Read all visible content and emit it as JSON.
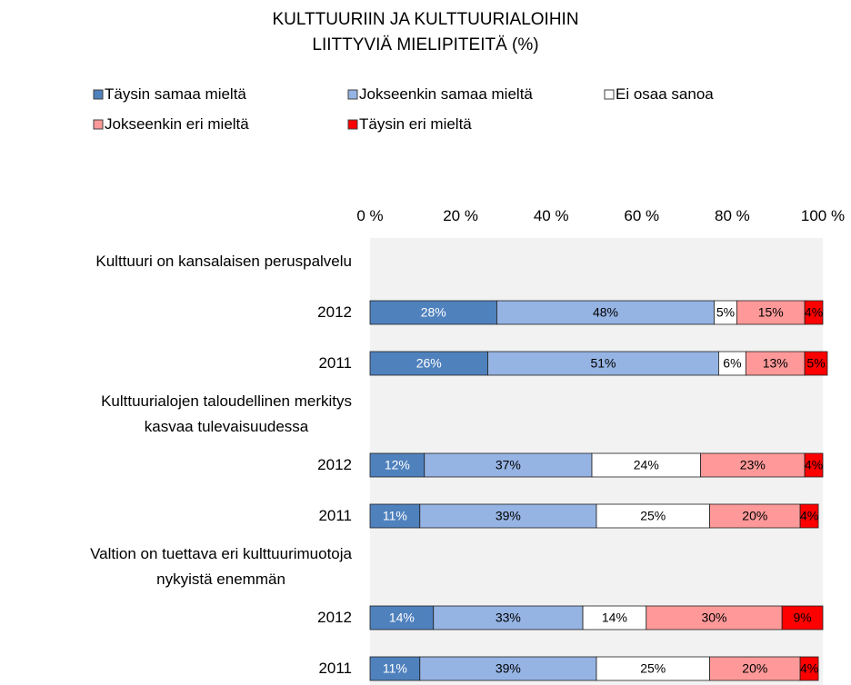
{
  "chart_data": {
    "type": "stacked-barh",
    "title": "KULTTUURIIN JA KULTTUURIALOIHIN\nLIITTYVIÄ MIELIPITEITÄ (%)",
    "categories": [
      "Kulttuuri on kansalaisen peruspalvelu",
      "2012",
      "2011",
      "Kulttuurialojen taloudellinen merkitys\nkasvaa tulevaisuudessa",
      "2012",
      "2011",
      "Valtion on tuettava eri kulttuurimuotoja\nnykyistä enemmän",
      "2012",
      "2011"
    ],
    "series": [
      {
        "name": "Täysin samaa mieltä",
        "color": "#4f81bd",
        "values": [
          null,
          28,
          26,
          null,
          12,
          11,
          null,
          14,
          11
        ],
        "value_labels": [
          null,
          "28%",
          "26%",
          null,
          "12%",
          "11%",
          null,
          "14%",
          "11%"
        ]
      },
      {
        "name": "Jokseenkin samaa mieltä",
        "color": "#95b3e3",
        "values": [
          null,
          48,
          51,
          null,
          37,
          39,
          null,
          33,
          39
        ],
        "value_labels": [
          null,
          "48%",
          "51%",
          null,
          "37%",
          "39%",
          null,
          "33%",
          "39%"
        ]
      },
      {
        "name": "Ei osaa sanoa",
        "color": "#ffffff",
        "values": [
          null,
          5,
          6,
          null,
          24,
          25,
          null,
          14,
          25
        ],
        "value_labels": [
          null,
          "5%",
          "6%",
          null,
          "24%",
          "25%",
          null,
          "14%",
          "25%"
        ]
      },
      {
        "name": "Jokseenkin eri mieltä",
        "color": "#ff9999",
        "values": [
          null,
          15,
          13,
          null,
          23,
          20,
          null,
          30,
          20
        ],
        "value_labels": [
          null,
          "15%",
          "13%",
          null,
          "23%",
          "20%",
          null,
          "30%",
          "20%"
        ]
      },
      {
        "name": "Täysin eri mieltä",
        "color": "#ff0000",
        "values": [
          null,
          4,
          5,
          null,
          4,
          4,
          null,
          9,
          4
        ],
        "value_labels": [
          null,
          "4%",
          "5%",
          null,
          "4%",
          "4%",
          null,
          "9%",
          "4%"
        ]
      }
    ],
    "xlim": [
      0,
      100
    ],
    "xticks": [
      {
        "value": 0,
        "label": "0 %"
      },
      {
        "value": 20,
        "label": "20 %"
      },
      {
        "value": 40,
        "label": "40 %"
      },
      {
        "value": 60,
        "label": "60 %"
      },
      {
        "value": 80,
        "label": "80 %"
      },
      {
        "value": 100,
        "label": "100 %"
      }
    ],
    "legend": "top"
  }
}
